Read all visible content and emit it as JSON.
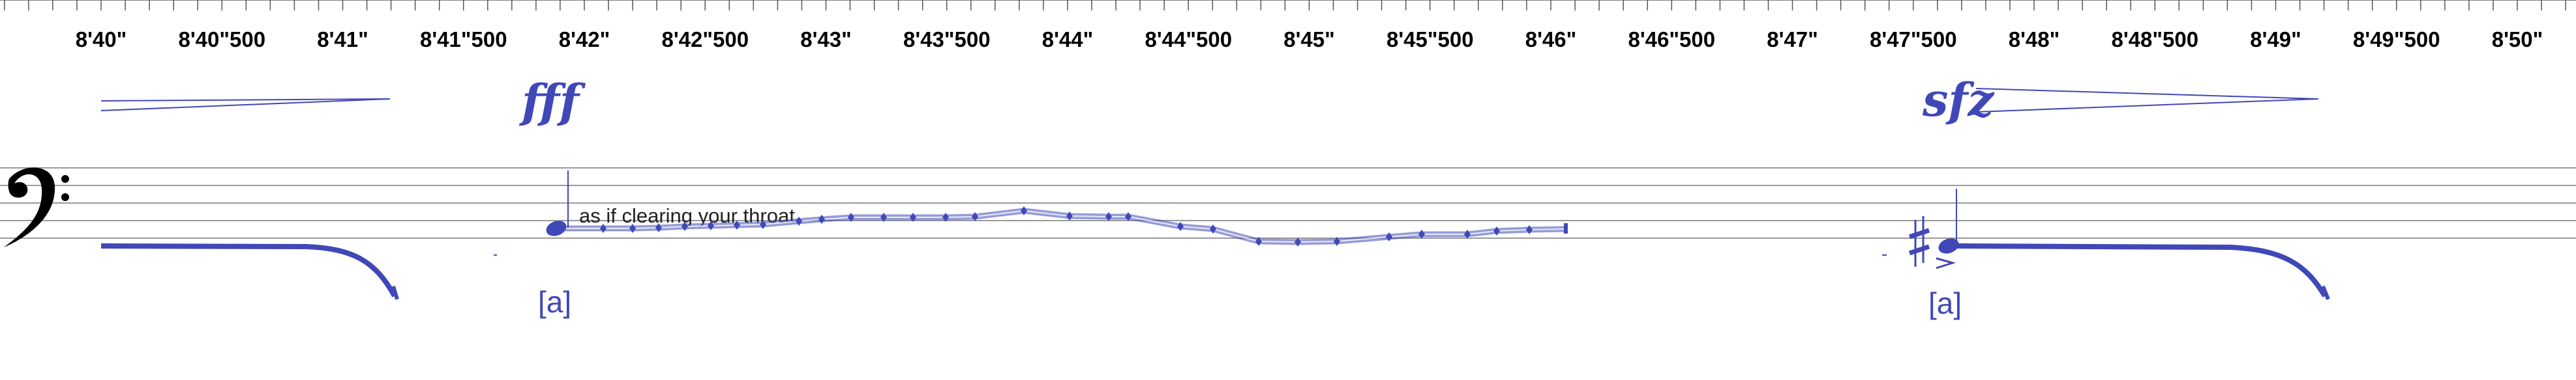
{
  "timeline": {
    "labels": [
      "8'40\"",
      "8'40\"500",
      "8'41\"",
      "8'41\"500",
      "8'42\"",
      "8'42\"500",
      "8'43\"",
      "8'43\"500",
      "8'44\"",
      "8'44\"500",
      "8'45\"",
      "8'45\"500",
      "8'46\"",
      "8'46\"500",
      "8'47\"",
      "8'47\"500",
      "8'48\"",
      "8'48\"500",
      "8'49\"",
      "8'49\"500",
      "8'50\""
    ]
  },
  "staff": {
    "clef": "bass-clef"
  },
  "dynamics": {
    "fff": "fff",
    "sfz": "sfz"
  },
  "annotations": {
    "playing_technique": "as if clearing your throat"
  },
  "lyrics": {
    "first_syllable": "[a]",
    "second_syllable": "[a]"
  },
  "colors": {
    "notation": "#4048b8",
    "staff_lines": "#9a9a9a",
    "ink": "#000000"
  }
}
